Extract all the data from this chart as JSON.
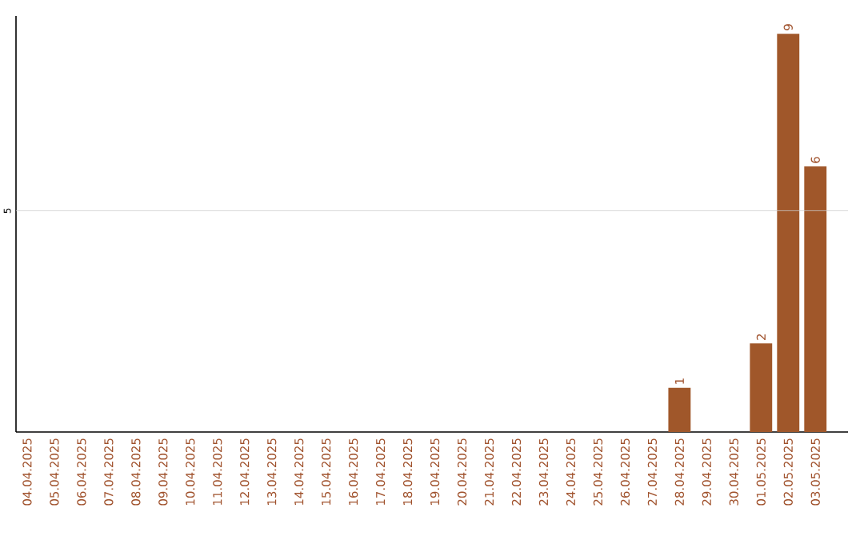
{
  "chart_data": {
    "type": "bar",
    "categories": [
      "04.04.2025",
      "05.04.2025",
      "06.04.2025",
      "07.04.2025",
      "08.04.2025",
      "09.04.2025",
      "10.04.2025",
      "11.04.2025",
      "12.04.2025",
      "13.04.2025",
      "14.04.2025",
      "15.04.2025",
      "16.04.2025",
      "17.04.2025",
      "18.04.2025",
      "19.04.2025",
      "20.04.2025",
      "21.04.2025",
      "22.04.2025",
      "23.04.2025",
      "24.04.2025",
      "25.04.2025",
      "26.04.2025",
      "27.04.2025",
      "28.04.2025",
      "29.04.2025",
      "30.04.2025",
      "01.05.2025",
      "02.05.2025",
      "03.05.2025"
    ],
    "values": [
      null,
      null,
      null,
      null,
      null,
      null,
      null,
      null,
      null,
      null,
      null,
      null,
      null,
      null,
      null,
      null,
      null,
      null,
      null,
      null,
      null,
      null,
      null,
      null,
      1,
      null,
      null,
      2,
      9,
      6
    ],
    "data_labels": true,
    "color": "#a0572a",
    "ylim": [
      0,
      9.4
    ],
    "ref_lines": [
      {
        "axis": "y",
        "value": 5,
        "label": "5",
        "color": "#cccccc"
      }
    ]
  }
}
